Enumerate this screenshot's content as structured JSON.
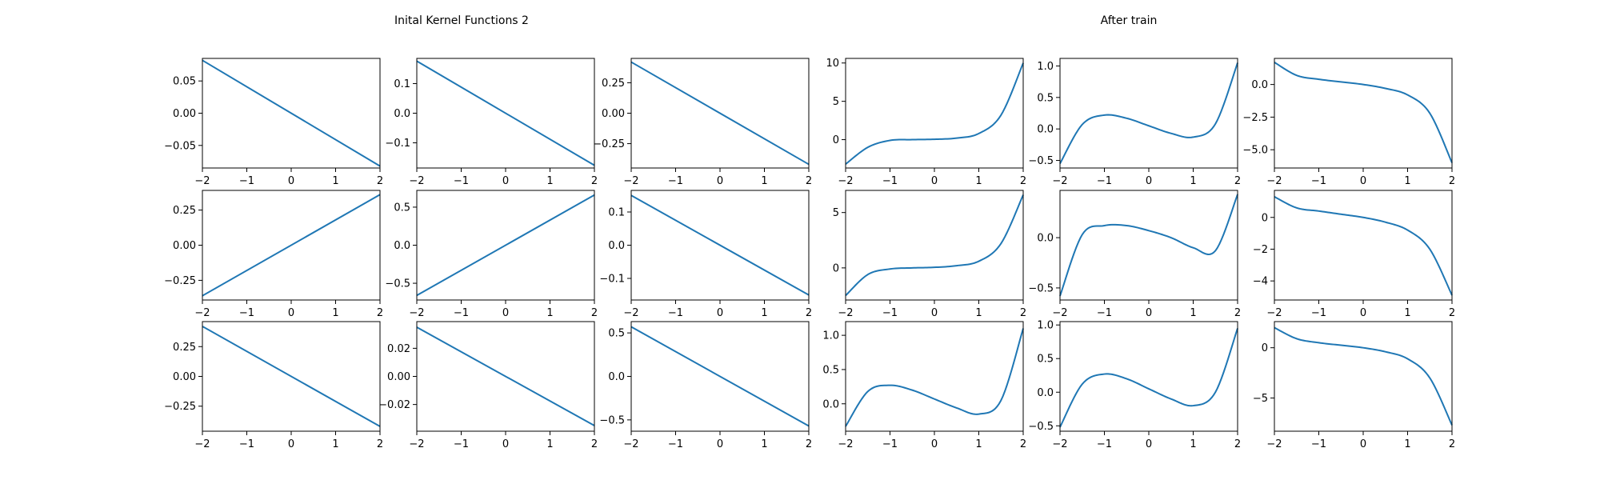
{
  "titles": {
    "left": "Inital Kernel Functions 2",
    "right": "After train"
  },
  "colors": {
    "line": "#1f77b4",
    "axes": "#000000",
    "background": "#ffffff"
  },
  "chart_data": [
    {
      "type": "line",
      "row": 0,
      "col": 0,
      "xlim": [
        -2,
        2
      ],
      "ylim": [
        -0.085,
        0.085
      ],
      "xticks": [
        "−2",
        "−1",
        "0",
        "1",
        "2"
      ],
      "yticks": [
        "0.05",
        "0.00",
        "−0.05"
      ],
      "ytick_values": [
        0.05,
        0.0,
        -0.05
      ],
      "x": [
        -2,
        2
      ],
      "y": [
        0.082,
        -0.082
      ]
    },
    {
      "type": "line",
      "row": 0,
      "col": 1,
      "xlim": [
        -2,
        2
      ],
      "ylim": [
        -0.185,
        0.185
      ],
      "xticks": [
        "−2",
        "−1",
        "0",
        "1",
        "2"
      ],
      "yticks": [
        "0.1",
        "0.0",
        "−0.1"
      ],
      "ytick_values": [
        0.1,
        0.0,
        -0.1
      ],
      "x": [
        -2,
        2
      ],
      "y": [
        0.176,
        -0.176
      ]
    },
    {
      "type": "line",
      "row": 0,
      "col": 2,
      "xlim": [
        -2,
        2
      ],
      "ylim": [
        -0.45,
        0.45
      ],
      "xticks": [
        "−2",
        "−1",
        "0",
        "1",
        "2"
      ],
      "yticks": [
        "0.25",
        "0.00",
        "−0.25"
      ],
      "ytick_values": [
        0.25,
        0.0,
        -0.25
      ],
      "x": [
        -2,
        2
      ],
      "y": [
        0.42,
        -0.42
      ]
    },
    {
      "type": "line",
      "row": 0,
      "col": 3,
      "xlim": [
        -2,
        2
      ],
      "ylim": [
        -3.7,
        10.6
      ],
      "xticks": [
        "−2",
        "−1",
        "0",
        "1",
        "2"
      ],
      "yticks": [
        "10",
        "5",
        "0"
      ],
      "ytick_values": [
        10,
        5,
        0
      ],
      "x": [
        -2.0,
        -1.5,
        -1.0,
        -0.5,
        0.0,
        0.5,
        1.0,
        1.5,
        2.0
      ],
      "y": [
        -3.2,
        -1.0,
        -0.1,
        0.0,
        0.05,
        0.2,
        0.8,
        3.2,
        10.0
      ]
    },
    {
      "type": "line",
      "row": 0,
      "col": 4,
      "xlim": [
        -2,
        2
      ],
      "ylim": [
        -0.62,
        1.12
      ],
      "xticks": [
        "−2",
        "−1",
        "0",
        "1",
        "2"
      ],
      "yticks": [
        "1.0",
        "0.5",
        "0.0",
        "−0.5"
      ],
      "ytick_values": [
        1.0,
        0.5,
        0.0,
        -0.5
      ],
      "x": [
        -2.0,
        -1.5,
        -1.0,
        -0.5,
        0.0,
        0.5,
        1.0,
        1.5,
        2.0
      ],
      "y": [
        -0.55,
        0.07,
        0.22,
        0.17,
        0.05,
        -0.07,
        -0.13,
        0.08,
        1.05
      ]
    },
    {
      "type": "line",
      "row": 0,
      "col": 5,
      "xlim": [
        -2,
        2
      ],
      "ylim": [
        -6.4,
        2.0
      ],
      "xticks": [
        "−2",
        "−1",
        "0",
        "1",
        "2"
      ],
      "yticks": [
        "0.0",
        "−2.5",
        "−5.0"
      ],
      "ytick_values": [
        0.0,
        -2.5,
        -5.0
      ],
      "x": [
        -2.0,
        -1.5,
        -1.0,
        -0.5,
        0.0,
        0.5,
        1.0,
        1.5,
        2.0
      ],
      "y": [
        1.7,
        0.7,
        0.4,
        0.2,
        0.0,
        -0.3,
        -0.8,
        -2.2,
        -6.0
      ]
    },
    {
      "type": "line",
      "row": 1,
      "col": 0,
      "xlim": [
        -2,
        2
      ],
      "ylim": [
        -0.39,
        0.39
      ],
      "xticks": [
        "−2",
        "−1",
        "0",
        "1",
        "2"
      ],
      "yticks": [
        "0.25",
        "0.00",
        "−0.25"
      ],
      "ytick_values": [
        0.25,
        0.0,
        -0.25
      ],
      "x": [
        -2,
        2
      ],
      "y": [
        -0.36,
        0.36
      ]
    },
    {
      "type": "line",
      "row": 1,
      "col": 1,
      "xlim": [
        -2,
        2
      ],
      "ylim": [
        -0.72,
        0.72
      ],
      "xticks": [
        "−2",
        "−1",
        "0",
        "1",
        "2"
      ],
      "yticks": [
        "0.5",
        "0.0",
        "−0.5"
      ],
      "ytick_values": [
        0.5,
        0.0,
        -0.5
      ],
      "x": [
        -2,
        2
      ],
      "y": [
        -0.66,
        0.66
      ]
    },
    {
      "type": "line",
      "row": 1,
      "col": 2,
      "xlim": [
        -2,
        2
      ],
      "ylim": [
        -0.165,
        0.165
      ],
      "xticks": [
        "−2",
        "−1",
        "0",
        "1",
        "2"
      ],
      "yticks": [
        "0.1",
        "0.0",
        "−0.1"
      ],
      "ytick_values": [
        0.1,
        0.0,
        -0.1
      ],
      "x": [
        -2,
        2
      ],
      "y": [
        0.15,
        -0.15
      ]
    },
    {
      "type": "line",
      "row": 1,
      "col": 3,
      "xlim": [
        -2,
        2
      ],
      "ylim": [
        -2.9,
        7.0
      ],
      "xticks": [
        "−2",
        "−1",
        "0",
        "1",
        "2"
      ],
      "yticks": [
        "5",
        "0"
      ],
      "ytick_values": [
        5,
        0
      ],
      "x": [
        -2.0,
        -1.5,
        -1.0,
        -0.5,
        0.0,
        0.5,
        1.0,
        1.5,
        2.0
      ],
      "y": [
        -2.5,
        -0.6,
        -0.1,
        0.0,
        0.05,
        0.2,
        0.6,
        2.2,
        6.6
      ]
    },
    {
      "type": "line",
      "row": 1,
      "col": 4,
      "xlim": [
        -2,
        2
      ],
      "ylim": [
        -0.62,
        0.47
      ],
      "xticks": [
        "−2",
        "−1",
        "0",
        "1",
        "2"
      ],
      "yticks": [
        "0.0",
        "−0.5"
      ],
      "ytick_values": [
        0.0,
        -0.5
      ],
      "x": [
        -2.0,
        -1.5,
        -1.0,
        -0.5,
        0.0,
        0.5,
        1.0,
        1.5,
        2.0
      ],
      "y": [
        -0.58,
        0.03,
        0.12,
        0.12,
        0.07,
        0.0,
        -0.1,
        -0.13,
        0.43
      ]
    },
    {
      "type": "line",
      "row": 1,
      "col": 5,
      "xlim": [
        -2,
        2
      ],
      "ylim": [
        -5.2,
        1.7
      ],
      "xticks": [
        "−2",
        "−1",
        "0",
        "1",
        "2"
      ],
      "yticks": [
        "0",
        "−2",
        "−4"
      ],
      "ytick_values": [
        0,
        -2,
        -4
      ],
      "x": [
        -2.0,
        -1.5,
        -1.0,
        -0.5,
        0.0,
        0.5,
        1.0,
        1.5,
        2.0
      ],
      "y": [
        1.3,
        0.6,
        0.4,
        0.2,
        0.0,
        -0.3,
        -0.8,
        -2.0,
        -4.9
      ]
    },
    {
      "type": "line",
      "row": 2,
      "col": 0,
      "xlim": [
        -2,
        2
      ],
      "ylim": [
        -0.46,
        0.46
      ],
      "xticks": [
        "−2",
        "−1",
        "0",
        "1",
        "2"
      ],
      "yticks": [
        "0.25",
        "0.00",
        "−0.25"
      ],
      "ytick_values": [
        0.25,
        0.0,
        -0.25
      ],
      "x": [
        -2,
        2
      ],
      "y": [
        0.42,
        -0.42
      ]
    },
    {
      "type": "line",
      "row": 2,
      "col": 1,
      "xlim": [
        -2,
        2
      ],
      "ylim": [
        -0.039,
        0.039
      ],
      "xticks": [
        "−2",
        "−1",
        "0",
        "1",
        "2"
      ],
      "yticks": [
        "0.02",
        "0.00",
        "−0.02"
      ],
      "ytick_values": [
        0.02,
        0.0,
        -0.02
      ],
      "x": [
        -2,
        2
      ],
      "y": [
        0.035,
        -0.035
      ]
    },
    {
      "type": "line",
      "row": 2,
      "col": 2,
      "xlim": [
        -2,
        2
      ],
      "ylim": [
        -0.63,
        0.63
      ],
      "xticks": [
        "−2",
        "−1",
        "0",
        "1",
        "2"
      ],
      "yticks": [
        "0.5",
        "0.0",
        "−0.5"
      ],
      "ytick_values": [
        0.5,
        0.0,
        -0.5
      ],
      "x": [
        -2,
        2
      ],
      "y": [
        0.57,
        -0.57
      ]
    },
    {
      "type": "line",
      "row": 2,
      "col": 3,
      "xlim": [
        -2,
        2
      ],
      "ylim": [
        -0.4,
        1.2
      ],
      "xticks": [
        "−2",
        "−1",
        "0",
        "1",
        "2"
      ],
      "yticks": [
        "1.0",
        "0.5",
        "0.0"
      ],
      "ytick_values": [
        1.0,
        0.5,
        0.0
      ],
      "x": [
        -2.0,
        -1.5,
        -1.0,
        -0.5,
        0.0,
        0.5,
        1.0,
        1.5,
        2.0
      ],
      "y": [
        -0.33,
        0.18,
        0.27,
        0.2,
        0.07,
        -0.06,
        -0.15,
        0.05,
        1.1
      ]
    },
    {
      "type": "line",
      "row": 2,
      "col": 4,
      "xlim": [
        -2,
        2
      ],
      "ylim": [
        -0.58,
        1.05
      ],
      "xticks": [
        "−2",
        "−1",
        "0",
        "1",
        "2"
      ],
      "yticks": [
        "1.0",
        "0.5",
        "0.0",
        "−0.5"
      ],
      "ytick_values": [
        1.0,
        0.5,
        0.0,
        -0.5
      ],
      "x": [
        -2.0,
        -1.5,
        -1.0,
        -0.5,
        0.0,
        0.5,
        1.0,
        1.5,
        2.0
      ],
      "y": [
        -0.52,
        0.12,
        0.27,
        0.2,
        0.05,
        -0.1,
        -0.2,
        0.0,
        0.95
      ]
    },
    {
      "type": "line",
      "row": 2,
      "col": 5,
      "xlim": [
        -2,
        2
      ],
      "ylim": [
        -8.3,
        2.6
      ],
      "xticks": [
        "−2",
        "−1",
        "0",
        "1",
        "2"
      ],
      "yticks": [
        "0",
        "−5"
      ],
      "ytick_values": [
        0,
        -5
      ],
      "x": [
        -2.0,
        -1.5,
        -1.0,
        -0.5,
        0.0,
        0.5,
        1.0,
        1.5,
        2.0
      ],
      "y": [
        2.0,
        0.9,
        0.5,
        0.25,
        0.0,
        -0.4,
        -1.1,
        -3.0,
        -7.7
      ]
    }
  ]
}
